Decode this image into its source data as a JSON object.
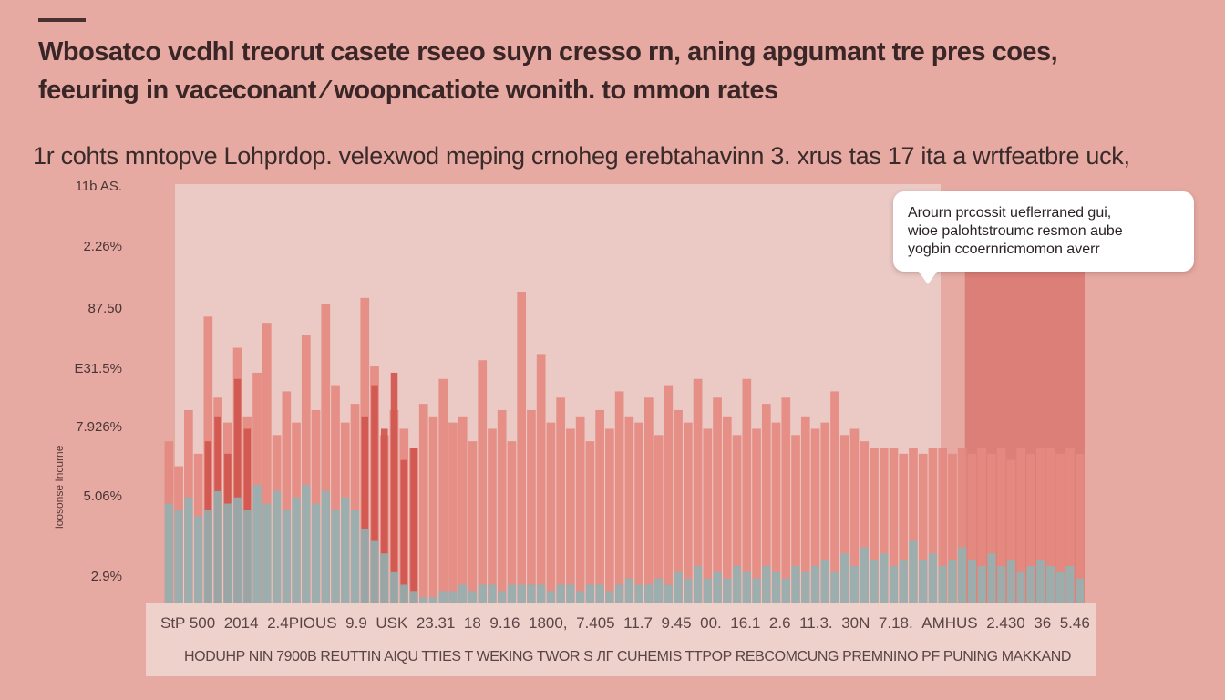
{
  "header": {
    "title_lines": [
      "Wbosatco vcdhl treorut casete rseeo suyn cresso rn, aning apgumant  tre pres coes,",
      "feeuring  in vaceconant ∕ woopncatiote wonith. to mmon rates"
    ],
    "subtitle": "1r  cohts  mntopve  Lohprdop.  velexwod meping  crnoheg  erebtahavinn  3. xrus  tas 17 ita  a  wrtfeatbre  uck,"
  },
  "callout": {
    "lines": [
      "Arourn prcossit ueflerraned gui,",
      "wioe palohtstroumc resmon aube",
      "yogbin ccoernricmomon averr"
    ]
  },
  "colors": {
    "background": "#e6aaa2",
    "plot_background": "#ebc9c5",
    "band": "#dc7f78",
    "salmon_series": "#e48a80",
    "red_series": "#d0564e",
    "teal_series": "#8fb4b4"
  },
  "chart_data": {
    "type": "bar",
    "title": "",
    "ylabel": "loosonse Incurne",
    "yticks": [
      "11b AS.",
      "2.26%",
      "87.50",
      "E31.5%",
      "7.926%",
      "5.06%",
      "2.9%"
    ],
    "xticks": [
      "StP 500",
      "2014",
      "2.4PIOUS",
      "9.9",
      "USK",
      "23.31",
      "18",
      "9.16",
      "1800,",
      "7.405",
      "11.7",
      "9.45",
      "00.",
      "16.1",
      "2.6",
      "11.3.",
      "30N",
      "7.18.",
      "AMHUS",
      "2.430",
      "36",
      "5.46"
    ],
    "xlabel": "HODUHP NIN 7900B REUTTIN AIQU TTIES T WEKING TWOR S ЛГ CUHEMIS TTPOP REBCOMCUNG PREMNINO PF PUNING MAKKAND",
    "ylim": [
      0,
      100
    ],
    "grid": false,
    "legend": "none",
    "annotation_band": {
      "x_start": 0.87,
      "x_end": 1.0
    },
    "series": [
      {
        "style": "salmon",
        "values": [
          52,
          44,
          62,
          48,
          92,
          66,
          58,
          82,
          60,
          74,
          90,
          54,
          68,
          58,
          86,
          62,
          96,
          70,
          58,
          64,
          98,
          76,
          54,
          62,
          56,
          50,
          64,
          60,
          72,
          58,
          60,
          52,
          78,
          56,
          62,
          52,
          100,
          62,
          80,
          58,
          66,
          56,
          60,
          52,
          62,
          56,
          68,
          60,
          58,
          66,
          54,
          70,
          62,
          58,
          72,
          56,
          66,
          60,
          54,
          72,
          56,
          64,
          58,
          66,
          54,
          60,
          56,
          58,
          68,
          54,
          56,
          52,
          50,
          50,
          50,
          48,
          50,
          48,
          50,
          50,
          48,
          50,
          48,
          50,
          48,
          50,
          46,
          50,
          48,
          50,
          50,
          48,
          50,
          48
        ]
      },
      {
        "style": "red",
        "values": [
          0,
          0,
          0,
          0,
          52,
          60,
          48,
          72,
          56,
          0,
          0,
          0,
          0,
          0,
          0,
          0,
          0,
          0,
          0,
          0,
          60,
          70,
          56,
          74,
          46,
          50,
          0,
          0,
          0,
          0,
          0,
          0,
          0,
          0,
          0,
          0,
          0,
          0,
          0,
          0,
          0,
          0,
          0,
          0,
          0,
          0,
          0,
          0,
          0,
          0,
          0,
          0,
          0,
          0,
          0,
          0,
          0,
          0,
          0,
          0,
          0,
          0,
          0,
          0,
          0,
          0,
          0,
          0,
          0,
          0,
          0,
          0,
          0,
          0,
          0,
          0,
          0,
          0,
          0,
          0,
          0,
          0,
          0,
          0,
          0,
          0,
          0,
          0,
          0,
          0,
          0,
          0,
          0,
          0
        ]
      },
      {
        "style": "teal",
        "values": [
          32,
          30,
          34,
          28,
          30,
          36,
          32,
          34,
          30,
          38,
          32,
          36,
          30,
          34,
          38,
          32,
          36,
          30,
          34,
          30,
          24,
          20,
          16,
          10,
          6,
          4,
          2,
          2,
          4,
          4,
          6,
          4,
          6,
          6,
          4,
          6,
          6,
          6,
          6,
          4,
          6,
          6,
          4,
          6,
          6,
          4,
          6,
          8,
          6,
          6,
          8,
          6,
          10,
          8,
          12,
          8,
          10,
          8,
          12,
          10,
          8,
          12,
          10,
          8,
          12,
          10,
          12,
          14,
          10,
          16,
          12,
          18,
          14,
          16,
          12,
          14,
          20,
          14,
          16,
          12,
          14,
          18,
          14,
          12,
          16,
          12,
          14,
          10,
          12,
          14,
          12,
          10,
          12,
          8
        ]
      }
    ]
  }
}
